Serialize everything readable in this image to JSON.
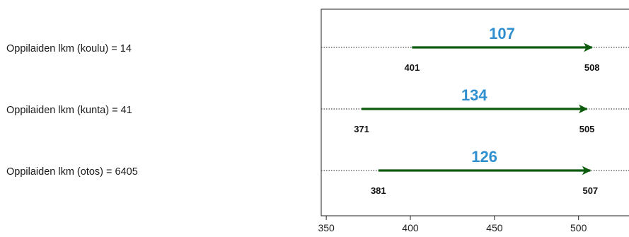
{
  "rows": [
    {
      "label": "Oppilaiden lkm (koulu) = 14"
    },
    {
      "label": "Oppilaiden lkm (kunta) = 41"
    },
    {
      "label": "Oppilaiden lkm (otos) = 6405"
    }
  ],
  "chart_data": {
    "type": "arrow-range",
    "title": "",
    "xlabel": "",
    "ylabel": "",
    "xlim": [
      347,
      530
    ],
    "xticks": [
      350,
      400,
      450,
      500
    ],
    "grid": false,
    "series": [
      {
        "start": 401,
        "end": 508,
        "change": 107,
        "start_label": "401",
        "end_label": "508",
        "change_label": "107"
      },
      {
        "start": 371,
        "end": 505,
        "change": 134,
        "start_label": "371",
        "end_label": "505",
        "change_label": "134"
      },
      {
        "start": 381,
        "end": 507,
        "change": 126,
        "start_label": "381",
        "end_label": "507",
        "change_label": "126"
      }
    ],
    "colors": {
      "arrow": "#0d5c0d",
      "change_label": "#2f8fcf",
      "value_label": "#111111",
      "axis": "#222222",
      "guide_line": "#222222"
    }
  }
}
